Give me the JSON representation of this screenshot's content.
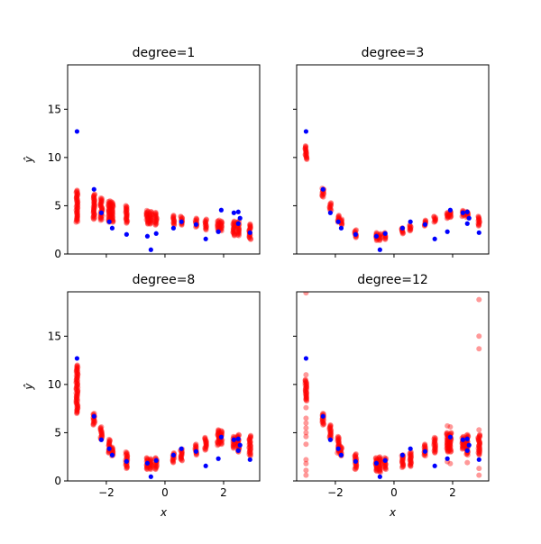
{
  "chart_data": [
    {
      "type": "scatter",
      "title": "degree=1",
      "xlabel": "",
      "ylabel": "ŷ",
      "xlim": [
        -3.32,
        3.23
      ],
      "ylim": [
        0,
        19.6
      ],
      "xticks": [
        -2,
        0,
        2
      ],
      "yticks": [
        0,
        5,
        10,
        15
      ],
      "show_xticklabels": false,
      "show_yticklabels": true,
      "predictions": [
        [
          -3.0,
          3.3,
          6.6
        ],
        [
          -2.42,
          3.6,
          6.2
        ],
        [
          -2.17,
          3.5,
          5.8
        ],
        [
          -1.9,
          3.3,
          5.5
        ],
        [
          -1.8,
          3.3,
          5.4
        ],
        [
          -1.31,
          3.2,
          5.0
        ],
        [
          -0.6,
          3.1,
          4.5
        ],
        [
          -0.48,
          3.1,
          4.4
        ],
        [
          -0.3,
          3.0,
          4.3
        ],
        [
          0.29,
          3.0,
          4.0
        ],
        [
          0.56,
          3.0,
          3.9
        ],
        [
          1.06,
          2.8,
          3.7
        ],
        [
          1.39,
          2.5,
          3.6
        ],
        [
          1.82,
          2.4,
          3.5
        ],
        [
          1.92,
          2.4,
          3.4
        ],
        [
          2.35,
          1.9,
          3.4
        ],
        [
          2.5,
          1.9,
          3.4
        ],
        [
          2.9,
          1.5,
          3.1
        ]
      ],
      "outliers": [],
      "data": [
        [
          -3.0,
          12.7
        ],
        [
          -2.42,
          6.7
        ],
        [
          -2.17,
          4.27
        ],
        [
          -1.9,
          3.34
        ],
        [
          -1.8,
          2.68
        ],
        [
          -1.31,
          2.03
        ],
        [
          -0.6,
          1.84
        ],
        [
          -0.48,
          0.44
        ],
        [
          -0.3,
          2.12
        ],
        [
          0.29,
          2.68
        ],
        [
          0.56,
          3.34
        ],
        [
          1.06,
          3.06
        ],
        [
          1.39,
          1.56
        ],
        [
          1.82,
          2.31
        ],
        [
          1.92,
          4.55
        ],
        [
          2.35,
          4.27
        ],
        [
          2.5,
          4.36
        ],
        [
          2.56,
          3.71
        ],
        [
          2.5,
          3.15
        ],
        [
          2.9,
          2.21
        ]
      ]
    },
    {
      "type": "scatter",
      "title": "degree=3",
      "xlabel": "",
      "ylabel": "",
      "xlim": [
        -3.32,
        3.23
      ],
      "ylim": [
        0,
        19.6
      ],
      "xticks": [
        -2,
        0,
        2
      ],
      "yticks": [
        0,
        5,
        10,
        15
      ],
      "show_xticklabels": false,
      "show_yticklabels": false,
      "predictions": [
        [
          -3.0,
          9.8,
          11.2
        ],
        [
          -2.42,
          5.9,
          6.8
        ],
        [
          -2.17,
          4.5,
          5.3
        ],
        [
          -1.9,
          3.3,
          4.0
        ],
        [
          -1.8,
          3.0,
          3.6
        ],
        [
          -1.31,
          1.7,
          2.5
        ],
        [
          -0.6,
          1.4,
          2.2
        ],
        [
          -0.48,
          1.4,
          2.1
        ],
        [
          -0.3,
          1.5,
          2.2
        ],
        [
          0.29,
          2.1,
          2.7
        ],
        [
          0.56,
          2.4,
          3.0
        ],
        [
          1.06,
          2.9,
          3.5
        ],
        [
          1.39,
          3.3,
          3.9
        ],
        [
          1.82,
          3.7,
          4.3
        ],
        [
          1.92,
          3.8,
          4.4
        ],
        [
          2.35,
          3.9,
          4.5
        ],
        [
          2.5,
          3.8,
          4.4
        ],
        [
          2.9,
          2.9,
          3.9
        ]
      ],
      "outliers": [],
      "data": [
        [
          -3.0,
          12.7
        ],
        [
          -2.42,
          6.7
        ],
        [
          -2.17,
          4.27
        ],
        [
          -1.9,
          3.34
        ],
        [
          -1.8,
          2.68
        ],
        [
          -1.31,
          2.03
        ],
        [
          -0.6,
          1.84
        ],
        [
          -0.48,
          0.44
        ],
        [
          -0.3,
          2.12
        ],
        [
          0.29,
          2.68
        ],
        [
          0.56,
          3.34
        ],
        [
          1.06,
          3.06
        ],
        [
          1.39,
          1.56
        ],
        [
          1.82,
          2.31
        ],
        [
          1.92,
          4.55
        ],
        [
          2.35,
          4.27
        ],
        [
          2.5,
          4.36
        ],
        [
          2.56,
          3.71
        ],
        [
          2.5,
          3.15
        ],
        [
          2.9,
          2.21
        ]
      ]
    },
    {
      "type": "scatter",
      "title": "degree=8",
      "xlabel": "x",
      "ylabel": "ŷ",
      "xlim": [
        -3.32,
        3.23
      ],
      "ylim": [
        0,
        19.6
      ],
      "xticks": [
        -2,
        0,
        2
      ],
      "yticks": [
        0,
        5,
        10,
        15
      ],
      "show_xticklabels": true,
      "show_yticklabels": true,
      "predictions": [
        [
          -3.0,
          7.0,
          12.0
        ],
        [
          -2.42,
          5.8,
          7.0
        ],
        [
          -2.17,
          4.3,
          5.6
        ],
        [
          -1.9,
          2.9,
          4.3
        ],
        [
          -1.8,
          2.6,
          3.5
        ],
        [
          -1.31,
          1.3,
          3.0
        ],
        [
          -0.6,
          1.2,
          2.4
        ],
        [
          -0.48,
          1.2,
          2.3
        ],
        [
          -0.3,
          1.2,
          2.4
        ],
        [
          0.29,
          1.9,
          2.9
        ],
        [
          0.56,
          2.1,
          3.3
        ],
        [
          1.06,
          2.7,
          3.8
        ],
        [
          1.39,
          3.2,
          4.5
        ],
        [
          1.82,
          3.7,
          5.3
        ],
        [
          1.92,
          3.8,
          5.2
        ],
        [
          2.35,
          3.4,
          4.6
        ],
        [
          2.5,
          3.0,
          4.8
        ],
        [
          2.9,
          2.6,
          4.7
        ]
      ],
      "outliers": [],
      "data": [
        [
          -3.0,
          12.7
        ],
        [
          -2.42,
          6.7
        ],
        [
          -2.17,
          4.27
        ],
        [
          -1.9,
          3.34
        ],
        [
          -1.8,
          2.68
        ],
        [
          -1.31,
          2.03
        ],
        [
          -0.6,
          1.84
        ],
        [
          -0.48,
          0.44
        ],
        [
          -0.3,
          2.12
        ],
        [
          0.29,
          2.68
        ],
        [
          0.56,
          3.34
        ],
        [
          1.06,
          3.06
        ],
        [
          1.39,
          1.56
        ],
        [
          1.82,
          2.31
        ],
        [
          1.92,
          4.55
        ],
        [
          2.35,
          4.27
        ],
        [
          2.5,
          4.36
        ],
        [
          2.56,
          3.71
        ],
        [
          2.5,
          3.15
        ],
        [
          2.9,
          2.21
        ]
      ]
    },
    {
      "type": "scatter",
      "title": "degree=12",
      "xlabel": "x",
      "ylabel": "",
      "xlim": [
        -3.32,
        3.23
      ],
      "ylim": [
        0,
        19.6
      ],
      "xticks": [
        -2,
        0,
        2
      ],
      "yticks": [
        0,
        5,
        10,
        15
      ],
      "show_xticklabels": true,
      "show_yticklabels": false,
      "predictions": [
        [
          -3.0,
          8.3,
          10.5
        ],
        [
          -2.42,
          5.8,
          7.0
        ],
        [
          -2.17,
          4.4,
          5.8
        ],
        [
          -1.9,
          2.9,
          4.6
        ],
        [
          -1.8,
          2.6,
          3.6
        ],
        [
          -1.31,
          1.2,
          2.8
        ],
        [
          -0.6,
          1.0,
          2.4
        ],
        [
          -0.48,
          0.9,
          2.5
        ],
        [
          -0.3,
          1.2,
          2.4
        ],
        [
          0.29,
          1.4,
          2.7
        ],
        [
          0.56,
          1.5,
          3.0
        ],
        [
          1.06,
          2.6,
          3.8
        ],
        [
          1.39,
          2.9,
          4.5
        ],
        [
          1.82,
          3.0,
          5.0
        ],
        [
          1.92,
          3.0,
          5.0
        ],
        [
          2.35,
          3.3,
          4.6
        ],
        [
          2.5,
          2.7,
          4.8
        ],
        [
          2.9,
          2.7,
          4.8
        ]
      ],
      "outliers": [
        [
          -3.0,
          19.5
        ],
        [
          -3.0,
          11.0
        ],
        [
          -3.0,
          7.6
        ],
        [
          -3.0,
          6.5
        ],
        [
          -3.0,
          6.0
        ],
        [
          -3.0,
          5.5
        ],
        [
          -3.0,
          5.0
        ],
        [
          -3.0,
          4.6
        ],
        [
          -3.0,
          3.8
        ],
        [
          -3.0,
          2.2
        ],
        [
          -3.0,
          1.8
        ],
        [
          -3.0,
          1.1
        ],
        [
          -3.0,
          0.6
        ],
        [
          1.82,
          2.0
        ],
        [
          1.82,
          5.7
        ],
        [
          1.92,
          5.6
        ],
        [
          1.92,
          1.8
        ],
        [
          2.5,
          1.9
        ],
        [
          2.9,
          18.8
        ],
        [
          2.9,
          15.0
        ],
        [
          2.9,
          13.7
        ],
        [
          2.9,
          5.3
        ],
        [
          2.9,
          1.3
        ],
        [
          2.9,
          0.6
        ]
      ],
      "data": [
        [
          -3.0,
          12.7
        ],
        [
          -2.42,
          6.7
        ],
        [
          -2.17,
          4.27
        ],
        [
          -1.9,
          3.34
        ],
        [
          -1.8,
          2.68
        ],
        [
          -1.31,
          2.03
        ],
        [
          -0.6,
          1.84
        ],
        [
          -0.48,
          0.44
        ],
        [
          -0.3,
          2.12
        ],
        [
          0.29,
          2.68
        ],
        [
          0.56,
          3.34
        ],
        [
          1.06,
          3.06
        ],
        [
          1.39,
          1.56
        ],
        [
          1.82,
          2.31
        ],
        [
          1.92,
          4.55
        ],
        [
          2.35,
          4.27
        ],
        [
          2.5,
          4.36
        ],
        [
          2.56,
          3.71
        ],
        [
          2.5,
          3.15
        ],
        [
          2.9,
          2.21
        ]
      ]
    }
  ],
  "colors": {
    "data": "#0000ff",
    "predictions": "#ff0000"
  }
}
